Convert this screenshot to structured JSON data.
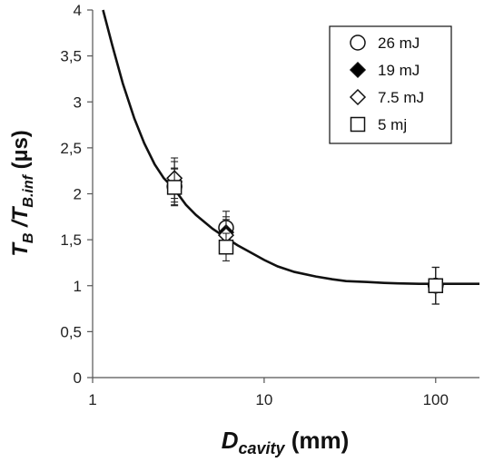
{
  "chart_data": {
    "type": "scatter",
    "x_scale": "log",
    "xlim": [
      1,
      180
    ],
    "ylim": [
      0,
      4
    ],
    "x_ticks": [
      {
        "value": 1,
        "label": "1"
      },
      {
        "value": 10,
        "label": "10"
      },
      {
        "value": 100,
        "label": "100"
      }
    ],
    "y_ticks": [
      {
        "value": 0,
        "label": "0"
      },
      {
        "value": 0.5,
        "label": "0,5"
      },
      {
        "value": 1,
        "label": "1"
      },
      {
        "value": 1.5,
        "label": "1,5"
      },
      {
        "value": 2,
        "label": "2"
      },
      {
        "value": 2.5,
        "label": "2,5"
      },
      {
        "value": 3,
        "label": "3"
      },
      {
        "value": 3.5,
        "label": "3,5"
      },
      {
        "value": 4,
        "label": "4"
      }
    ],
    "xlabel": {
      "main": "D",
      "sub": "cavity",
      "rest": " (mm)"
    },
    "ylabel": {
      "main1": "T",
      "sub1": "B",
      "mid": " /T",
      "sub2": "B.inf",
      "rest": " (µs)"
    },
    "grid": false,
    "legend_position": "top-right",
    "series": [
      {
        "name": "26 mJ",
        "marker": "circle-open",
        "points": [
          {
            "x": 3,
            "y": 2.08,
            "err": 0.2
          },
          {
            "x": 6,
            "y": 1.63,
            "err": 0.18
          },
          {
            "x": 100,
            "y": 1.0,
            "err": 0.2
          }
        ]
      },
      {
        "name": "19 mJ",
        "marker": "diamond-filled",
        "points": [
          {
            "x": 3,
            "y": 2.13,
            "err": 0.22
          },
          {
            "x": 6,
            "y": 1.58,
            "err": 0.17
          },
          {
            "x": 100,
            "y": 1.0,
            "err": 0.2
          }
        ]
      },
      {
        "name": "7.5 mJ",
        "marker": "diamond-open",
        "points": [
          {
            "x": 3,
            "y": 2.17,
            "err": 0.22
          },
          {
            "x": 6,
            "y": 1.55,
            "err": 0.17
          },
          {
            "x": 100,
            "y": 1.0,
            "err": 0.2
          }
        ]
      },
      {
        "name": "5 mj",
        "marker": "square-open",
        "points": [
          {
            "x": 3,
            "y": 2.07,
            "err": 0.2
          },
          {
            "x": 6,
            "y": 1.42,
            "err": 0.15
          },
          {
            "x": 100,
            "y": 1.0,
            "err": 0.2
          }
        ]
      }
    ],
    "fit_curve": {
      "x": [
        1.15,
        1.3,
        1.5,
        1.75,
        2,
        2.3,
        2.6,
        3,
        3.5,
        4,
        5,
        6,
        7,
        8,
        10,
        12,
        15,
        20,
        25,
        30,
        40,
        50,
        60,
        80,
        100,
        130,
        180
      ],
      "y": [
        4.0,
        3.62,
        3.2,
        2.82,
        2.55,
        2.32,
        2.17,
        2.05,
        1.88,
        1.77,
        1.62,
        1.52,
        1.44,
        1.38,
        1.28,
        1.21,
        1.15,
        1.1,
        1.07,
        1.05,
        1.04,
        1.03,
        1.025,
        1.02,
        1.02,
        1.02,
        1.02
      ]
    }
  }
}
